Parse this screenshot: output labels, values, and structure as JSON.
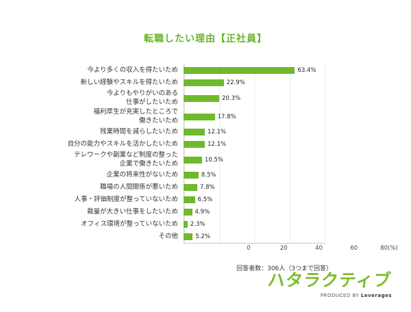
{
  "title": "転職したい理由【正社員】",
  "footnote": "回答者数：306人（3つまで回答）",
  "logo": {
    "brand": "ハタラクティブ",
    "produced_by": "PRODUCED BY ",
    "company": "Leverages"
  },
  "colors": {
    "accent_green": "#6fb92e",
    "title_green": "#6ab42c",
    "grid": "#ececec",
    "text": "#333333"
  },
  "chart_data": {
    "type": "bar",
    "orientation": "horizontal",
    "title": "転職したい理由【正社員】",
    "xlabel": "",
    "ylabel": "",
    "xlim": [
      0,
      80
    ],
    "grid": true,
    "categories": [
      "今より多くの収入を得たいため",
      "新しい経験やスキルを得たいため",
      "今よりもやりがいのある\n仕事がしたいため",
      "福利厚生が充実したところで\n働きたいため",
      "残業時間を減らしたいため",
      "自分の能力やスキルを活かしたいため",
      "テレワークや副業など制度の整った\n企業で働きたいため",
      "企業の将来性がないため",
      "職場の人間関係が悪いため",
      "人事・評価制度が整っていないため",
      "裁量が大きい仕事をしたいため",
      "オフィス環境が整っていないため",
      "その他"
    ],
    "values": [
      63.4,
      22.9,
      20.3,
      17.8,
      12.1,
      12.1,
      10.5,
      8.5,
      7.8,
      6.5,
      4.9,
      2.3,
      5.2
    ],
    "value_labels": [
      "63.4%",
      "22.9%",
      "20.3%",
      "17.8%",
      "12.1%",
      "12.1%",
      "10.5%",
      "8.5%",
      "7.8%",
      "6.5%",
      "4.9%",
      "2.3%",
      "5.2%"
    ],
    "x_ticks": [
      {
        "value": 0,
        "label": "0"
      },
      {
        "value": 20,
        "label": "20"
      },
      {
        "value": 40,
        "label": "40"
      },
      {
        "value": 60,
        "label": "60"
      },
      {
        "value": 80,
        "label": "80(%)"
      }
    ]
  }
}
